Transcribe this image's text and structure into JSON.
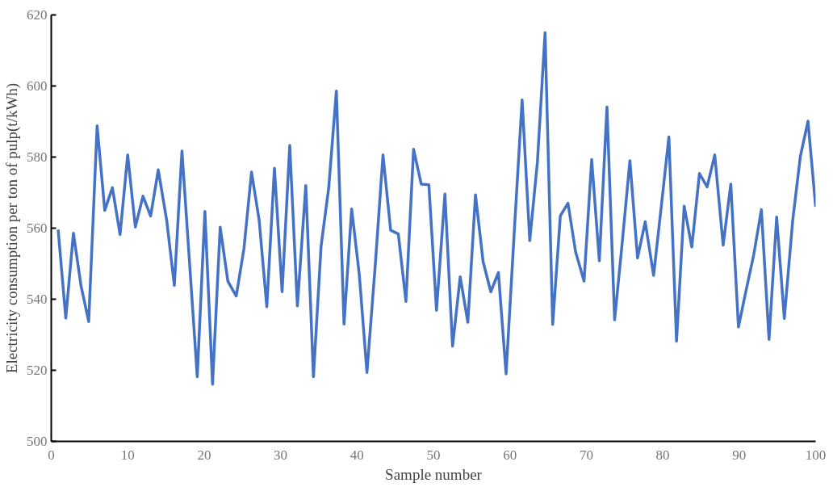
{
  "chart_data": {
    "type": "line",
    "xlabel": "Sample number",
    "ylabel": "Electricity consumption per ton of pulp(t/kWh)",
    "xlim": [
      0,
      100
    ],
    "xticks": [
      0,
      10,
      20,
      30,
      40,
      50,
      60,
      70,
      80,
      90,
      100
    ],
    "ylim": [
      500,
      620
    ],
    "yticks": [
      500,
      520,
      540,
      560,
      580,
      600,
      620
    ],
    "grid": false,
    "marker": "none",
    "line_style": "solid",
    "series": [
      {
        "color": "#4472c4",
        "x": [
          0.9,
          1.9,
          2.9,
          3.9,
          4.9,
          6.0,
          7.0,
          8.0,
          9.0,
          10.0,
          11.0,
          12.0,
          13.0,
          14.0,
          15.1,
          16.1,
          17.1,
          18.1,
          19.1,
          20.1,
          21.1,
          22.1,
          23.1,
          24.2,
          25.2,
          26.2,
          27.2,
          28.2,
          29.2,
          30.2,
          31.2,
          32.2,
          33.3,
          34.3,
          35.3,
          36.3,
          37.3,
          38.3,
          39.3,
          40.3,
          41.3,
          42.4,
          43.4,
          44.4,
          45.4,
          46.4,
          47.4,
          48.4,
          49.4,
          50.4,
          51.5,
          52.5,
          53.5,
          54.5,
          55.5,
          56.5,
          57.5,
          58.5,
          59.5,
          60.6,
          61.6,
          62.6,
          63.6,
          64.6,
          65.6,
          66.6,
          67.6,
          68.6,
          69.7,
          70.7,
          71.7,
          72.7,
          73.7,
          74.7,
          75.7,
          76.7,
          77.7,
          78.8,
          79.8,
          80.8,
          81.8,
          82.8,
          83.8,
          84.8,
          85.8,
          86.8,
          87.9,
          88.9,
          89.9,
          90.9,
          91.9,
          92.9,
          93.9,
          94.9,
          95.9,
          97.0,
          98.0,
          99.0,
          100.0
        ],
        "values": [
          559.6,
          534.7,
          558.6,
          543.7,
          533.7,
          588.8,
          565.0,
          571.4,
          558.2,
          580.6,
          560.3,
          569.0,
          563.4,
          576.4,
          562.2,
          543.9,
          581.7,
          550,
          518.2,
          564.7,
          516.1,
          560.3,
          545.1,
          540.9,
          554.1,
          575.8,
          562.2,
          537.9,
          576.9,
          542.1,
          583.3,
          538.1,
          572.0,
          518.2,
          554.9,
          571.4,
          598.6,
          533.0,
          565.4,
          546.9,
          519.4,
          550,
          580.6,
          559.4,
          558.4,
          539.4,
          582.2,
          572.4,
          572.2,
          536.9,
          569.6,
          526.8,
          546.3,
          533.5,
          569.4,
          550.5,
          542.1,
          547.5,
          519.0,
          560,
          596.1,
          556.5,
          578.6,
          615.0,
          532.9,
          563.5,
          567.0,
          553.3,
          545.1,
          579.3,
          550.8,
          594.1,
          534.2,
          556,
          579.0,
          551.6,
          561.8,
          546.7,
          566,
          585.7,
          528.2,
          566.2,
          554.7,
          575.4,
          571.6,
          580.6,
          555.2,
          572.4,
          532.2,
          542.5,
          552.5,
          565.2,
          528.7,
          563.1,
          534.6,
          562.2,
          580.2,
          590.1,
          566.0
        ]
      }
    ]
  }
}
